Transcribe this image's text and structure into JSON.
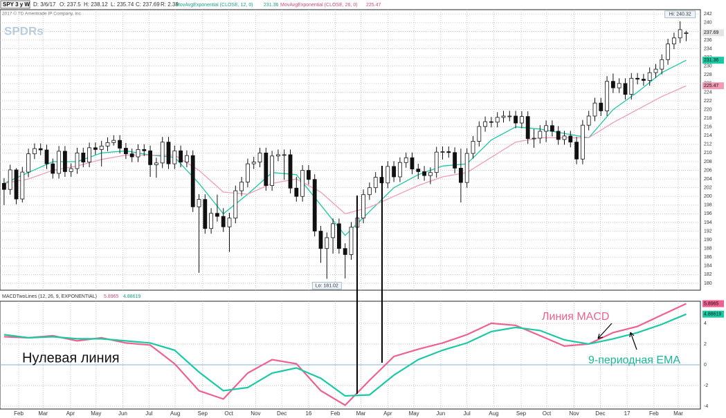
{
  "header": {
    "symbol": "SPY 3 y W",
    "date": "D: 3/6/17",
    "open": "O: 237.5",
    "high": "H: 238.12",
    "low": "L: 235.74",
    "close": "C: 237.69",
    "range": "R: 2.38",
    "copyright": "2017 © TD Ameritrade IP Company, Inc",
    "watermark": "SPDRs"
  },
  "chart_data": [
    {
      "type": "candlestick",
      "x": [
        0,
        1,
        2,
        3,
        4,
        5,
        6,
        7,
        8,
        9,
        10,
        11,
        12,
        13,
        14,
        15,
        16,
        17,
        18,
        19,
        20,
        21,
        22,
        23,
        24,
        25,
        26,
        27,
        28,
        29,
        30,
        31,
        32,
        33,
        34,
        35,
        36,
        37,
        38,
        39,
        40,
        41,
        42,
        43,
        44,
        45,
        46,
        47,
        48,
        49,
        50,
        51,
        52,
        53,
        54,
        55,
        56,
        57,
        58,
        59,
        60,
        61,
        62,
        63,
        64,
        65,
        66,
        67,
        68,
        69,
        70,
        71,
        72,
        73,
        74,
        75,
        76,
        77,
        78,
        79,
        80,
        81,
        82,
        83,
        84,
        85,
        86,
        87,
        88,
        89,
        90,
        91,
        92,
        93,
        94,
        95,
        96,
        97,
        98,
        99,
        100,
        101,
        102,
        103,
        104,
        105,
        106,
        107,
        108,
        109,
        110,
        111,
        112
      ],
      "open": [
        203.0,
        201.6,
        206.1,
        199.4,
        205.6,
        209.8,
        211.0,
        210.7,
        207.5,
        205.3,
        210.4,
        205.7,
        206.4,
        210.0,
        207.9,
        211.2,
        210.8,
        211.6,
        212.4,
        212.9,
        211.1,
        209.8,
        209.1,
        210.8,
        210.5,
        207.3,
        207.7,
        212.5,
        207.5,
        210.5,
        207.9,
        209.4,
        197.6,
        199.3,
        192.6,
        196.1,
        195.4,
        193.0,
        195.0,
        201.3,
        203.3,
        207.5,
        207.9,
        210.0,
        202.5,
        209.3,
        209.6,
        209.6,
        201.9,
        200.0,
        206.0,
        203.9,
        192.0,
        188.0,
        190.5,
        193.7,
        188.0,
        186.6,
        192.9,
        195.0,
        200.4,
        202.0,
        204.4,
        203.1,
        206.9,
        204.5,
        207.8,
        208.9,
        206.3,
        205.7,
        204.8,
        205.5,
        210.2,
        210.3,
        210.1,
        206.5,
        203.2,
        209.9,
        212.7,
        216.1,
        217.2,
        217.1,
        218.2,
        218.5,
        218.5,
        216.9,
        218.4,
        213.3,
        213.4,
        215.0,
        216.3,
        215.0,
        213.1,
        213.9,
        212.5,
        208.6,
        216.4,
        218.5,
        221.5,
        219.7,
        226.5,
        225.0,
        226.0,
        223.5,
        227.2,
        227.0,
        226.7,
        228.5,
        229.3,
        231.5,
        235.1,
        236.5,
        237.5
      ],
      "high": [
        204.2,
        207.3,
        206.5,
        206.8,
        211.0,
        212.2,
        212.2,
        211.9,
        208.7,
        211.6,
        211.6,
        207.6,
        211.2,
        211.2,
        212.4,
        212.4,
        212.8,
        213.6,
        214.1,
        214.1,
        212.3,
        211.0,
        212.0,
        212.0,
        211.7,
        208.9,
        213.7,
        213.7,
        211.7,
        211.7,
        210.6,
        210.6,
        200.5,
        200.5,
        197.3,
        200.4,
        197.3,
        196.2,
        202.5,
        204.5,
        208.7,
        209.1,
        211.2,
        211.2,
        210.5,
        210.8,
        210.8,
        210.8,
        204.5,
        207.2,
        207.2,
        205.1,
        193.2,
        191.7,
        194.9,
        194.9,
        189.2,
        194.1,
        196.2,
        201.6,
        203.2,
        205.6,
        205.6,
        208.1,
        208.1,
        209.0,
        210.1,
        210.1,
        207.5,
        207.0,
        206.7,
        211.4,
        211.5,
        211.5,
        211.3,
        211.0,
        211.1,
        213.9,
        217.3,
        218.4,
        218.3,
        219.4,
        219.7,
        219.7,
        219.7,
        219.6,
        219.6,
        215.5,
        216.4,
        217.5,
        217.5,
        216.2,
        215.1,
        215.1,
        213.7,
        217.6,
        219.7,
        222.7,
        222.7,
        227.7,
        228.3,
        227.2,
        227.2,
        228.4,
        228.4,
        228.2,
        229.7,
        230.5,
        232.7,
        236.3,
        237.7,
        240.32,
        238.12
      ],
      "low": [
        198.0,
        200.4,
        198.2,
        198.6,
        204.4,
        208.6,
        209.5,
        206.3,
        204.1,
        204.1,
        204.5,
        204.5,
        205.2,
        206.7,
        206.7,
        209.6,
        206.9,
        210.4,
        211.7,
        209.9,
        208.6,
        207.9,
        207.9,
        209.3,
        204.5,
        204.3,
        206.5,
        206.3,
        206.3,
        206.7,
        206.7,
        196.4,
        182.4,
        191.4,
        191.4,
        194.2,
        191.8,
        187.2,
        193.8,
        200.1,
        202.1,
        206.3,
        206.7,
        201.3,
        201.3,
        208.1,
        203.8,
        200.7,
        198.8,
        198.8,
        202.7,
        190.8,
        184.7,
        181.02,
        186.8,
        186.8,
        181.1,
        185.4,
        191.7,
        193.8,
        199.2,
        200.8,
        201.9,
        201.9,
        203.3,
        203.3,
        206.6,
        205.1,
        204.0,
        203.6,
        202.8,
        204.3,
        208.5,
        208.9,
        205.3,
        198.6,
        202.0,
        208.7,
        211.5,
        214.9,
        215.9,
        215.9,
        217.0,
        217.3,
        215.7,
        215.7,
        212.1,
        211.2,
        212.2,
        212.5,
        213.8,
        211.9,
        211.9,
        211.3,
        207.4,
        207.4,
        215.2,
        217.3,
        218.5,
        218.5,
        223.8,
        223.8,
        222.3,
        222.3,
        225.8,
        225.5,
        225.5,
        227.3,
        228.1,
        230.3,
        233.9,
        235.3,
        235.74
      ],
      "close": [
        201.6,
        206.1,
        199.4,
        205.6,
        209.8,
        211.0,
        210.7,
        207.5,
        205.3,
        210.4,
        205.7,
        206.4,
        210.0,
        207.9,
        211.2,
        210.8,
        211.6,
        212.4,
        212.9,
        211.1,
        209.8,
        209.1,
        210.8,
        210.5,
        207.3,
        207.7,
        212.5,
        207.5,
        210.5,
        207.9,
        209.4,
        197.6,
        199.3,
        192.6,
        196.1,
        195.4,
        193.0,
        195.0,
        201.3,
        203.3,
        207.5,
        207.9,
        210.0,
        202.5,
        209.3,
        209.6,
        209.6,
        201.9,
        200.0,
        206.0,
        203.9,
        192.0,
        188.0,
        190.5,
        193.7,
        188.0,
        186.6,
        192.9,
        195.0,
        200.4,
        202.0,
        204.4,
        203.1,
        206.9,
        204.5,
        207.8,
        208.9,
        206.3,
        205.7,
        204.8,
        205.5,
        210.2,
        210.3,
        210.1,
        206.5,
        203.2,
        209.9,
        212.7,
        216.1,
        217.2,
        217.1,
        218.2,
        218.5,
        218.5,
        216.9,
        218.4,
        213.3,
        213.4,
        215.0,
        216.3,
        215.0,
        213.1,
        213.9,
        212.5,
        208.6,
        216.4,
        218.5,
        221.5,
        219.7,
        226.5,
        225.0,
        226.0,
        223.5,
        227.2,
        227.0,
        226.7,
        228.5,
        229.3,
        231.5,
        235.1,
        236.5,
        238.4,
        237.69
      ],
      "up_color": "#ffffff",
      "down_color": "#111111",
      "hi_label": "Hi: 240.32",
      "lo_label": "Lo: 181.02",
      "xlim": [
        -0.67,
        114.33
      ],
      "ylim": [
        178.4,
        243.0
      ],
      "yticks": [
        180,
        182,
        184,
        186,
        188,
        190,
        192,
        194,
        196,
        198,
        200,
        202,
        204,
        206,
        208,
        210,
        212,
        214,
        216,
        218,
        220,
        222,
        224,
        226,
        228,
        230,
        232,
        234,
        236,
        238,
        240,
        242
      ],
      "grid": true,
      "series": [
        {
          "name": "MovAvgExponential (CLOSE, 12, 0)",
          "color": "#19c9a3",
          "x": [
            0,
            4,
            8,
            12,
            16,
            20,
            24,
            28,
            32,
            36,
            40,
            44,
            48,
            52,
            56,
            60,
            64,
            68,
            72,
            76,
            80,
            84,
            88,
            92,
            96,
            100,
            104,
            108,
            112
          ],
          "values": [
            203,
            205.5,
            208,
            208,
            210,
            210.5,
            209.5,
            209,
            203,
            196,
            200.5,
            205.5,
            205,
            198,
            191,
            196.5,
            202,
            205,
            207,
            207.5,
            213,
            216,
            215.5,
            214.5,
            213.5,
            220,
            224,
            228.5,
            231.36
          ]
        },
        {
          "name": "MovAvgExponential (CLOSE, 26, 0)",
          "color": "#f29bb5",
          "x": [
            0,
            4,
            8,
            12,
            16,
            20,
            24,
            28,
            32,
            36,
            40,
            44,
            48,
            52,
            56,
            60,
            64,
            68,
            72,
            76,
            80,
            84,
            88,
            92,
            96,
            100,
            104,
            108,
            112
          ],
          "values": [
            203,
            204,
            206,
            207,
            208.5,
            209.5,
            209.5,
            209.5,
            206,
            201,
            200.5,
            203,
            204,
            201,
            196,
            197.5,
            200,
            202.5,
            204.5,
            205.5,
            209,
            212.5,
            213.5,
            213.5,
            213.5,
            217,
            220,
            223,
            225.47
          ]
        }
      ]
    },
    {
      "type": "line",
      "title": "MACDTwoLines (12, 26, 9, EXPONENTIAL)",
      "zero_label": "Нулевая линия",
      "xlim": [
        -0.67,
        114.33
      ],
      "xticks": [
        {
          "value": 2.4,
          "label": "Feb"
        },
        {
          "value": 6.4,
          "label": "Mar"
        },
        {
          "value": 10.9,
          "label": "Apr"
        },
        {
          "value": 15.1,
          "label": "May"
        },
        {
          "value": 19.5,
          "label": "Jun"
        },
        {
          "value": 23.8,
          "label": "Jul"
        },
        {
          "value": 28.1,
          "label": "Aug"
        },
        {
          "value": 32.6,
          "label": "Sep"
        },
        {
          "value": 36.9,
          "label": "Oct"
        },
        {
          "value": 41.3,
          "label": "Nov"
        },
        {
          "value": 45.6,
          "label": "Dec"
        },
        {
          "value": 50.0,
          "label": "16"
        },
        {
          "value": 54.4,
          "label": "Feb"
        },
        {
          "value": 58.6,
          "label": "Mar"
        },
        {
          "value": 63.0,
          "label": "Apr"
        },
        {
          "value": 67.3,
          "label": "May"
        },
        {
          "value": 71.7,
          "label": "Jun"
        },
        {
          "value": 76.0,
          "label": "Jul"
        },
        {
          "value": 80.4,
          "label": "Aug"
        },
        {
          "value": 84.9,
          "label": "Sep"
        },
        {
          "value": 89.1,
          "label": "Oct"
        },
        {
          "value": 93.6,
          "label": "Nov"
        },
        {
          "value": 97.9,
          "label": "Dec"
        },
        {
          "value": 102.3,
          "label": "17"
        },
        {
          "value": 106.7,
          "label": "Feb"
        },
        {
          "value": 110.7,
          "label": "Mar"
        }
      ],
      "ylim": [
        -4.27,
        6.13
      ],
      "yticks": [
        -4,
        -2,
        0,
        2,
        4
      ],
      "series": [
        {
          "name": "Линия MACD",
          "color": "#f0608f",
          "x": [
            0,
            4,
            8,
            12,
            16,
            20,
            24,
            28,
            32,
            36,
            40,
            44,
            48,
            52,
            56,
            60,
            64,
            68,
            72,
            76,
            80,
            84,
            88,
            92,
            96,
            100,
            104,
            108,
            112
          ],
          "values": [
            2.7,
            2.6,
            2.8,
            2.3,
            2.6,
            2.1,
            1.9,
            0.1,
            -2.5,
            -3.3,
            -0.8,
            0.5,
            0.1,
            -2.5,
            -3.9,
            -1.5,
            0.8,
            1.5,
            2.1,
            2.9,
            4.0,
            3.8,
            2.8,
            1.8,
            2.0,
            3.1,
            3.7,
            4.8,
            5.8965
          ]
        },
        {
          "name": "9-периодная EMA",
          "color": "#19c9a3",
          "x": [
            0,
            4,
            8,
            12,
            16,
            20,
            24,
            28,
            32,
            36,
            40,
            44,
            48,
            52,
            56,
            60,
            64,
            68,
            72,
            76,
            80,
            84,
            88,
            92,
            96,
            100,
            104,
            108,
            112
          ],
          "values": [
            2.9,
            2.6,
            2.7,
            2.5,
            2.5,
            2.3,
            2.1,
            1.4,
            -0.7,
            -2.5,
            -2.2,
            -0.8,
            -0.3,
            -1.3,
            -3.0,
            -2.9,
            -1.0,
            0.5,
            1.4,
            2.1,
            3.2,
            3.6,
            3.3,
            2.4,
            2.0,
            2.5,
            3.1,
            3.9,
            4.88619
          ]
        }
      ]
    }
  ]
}
